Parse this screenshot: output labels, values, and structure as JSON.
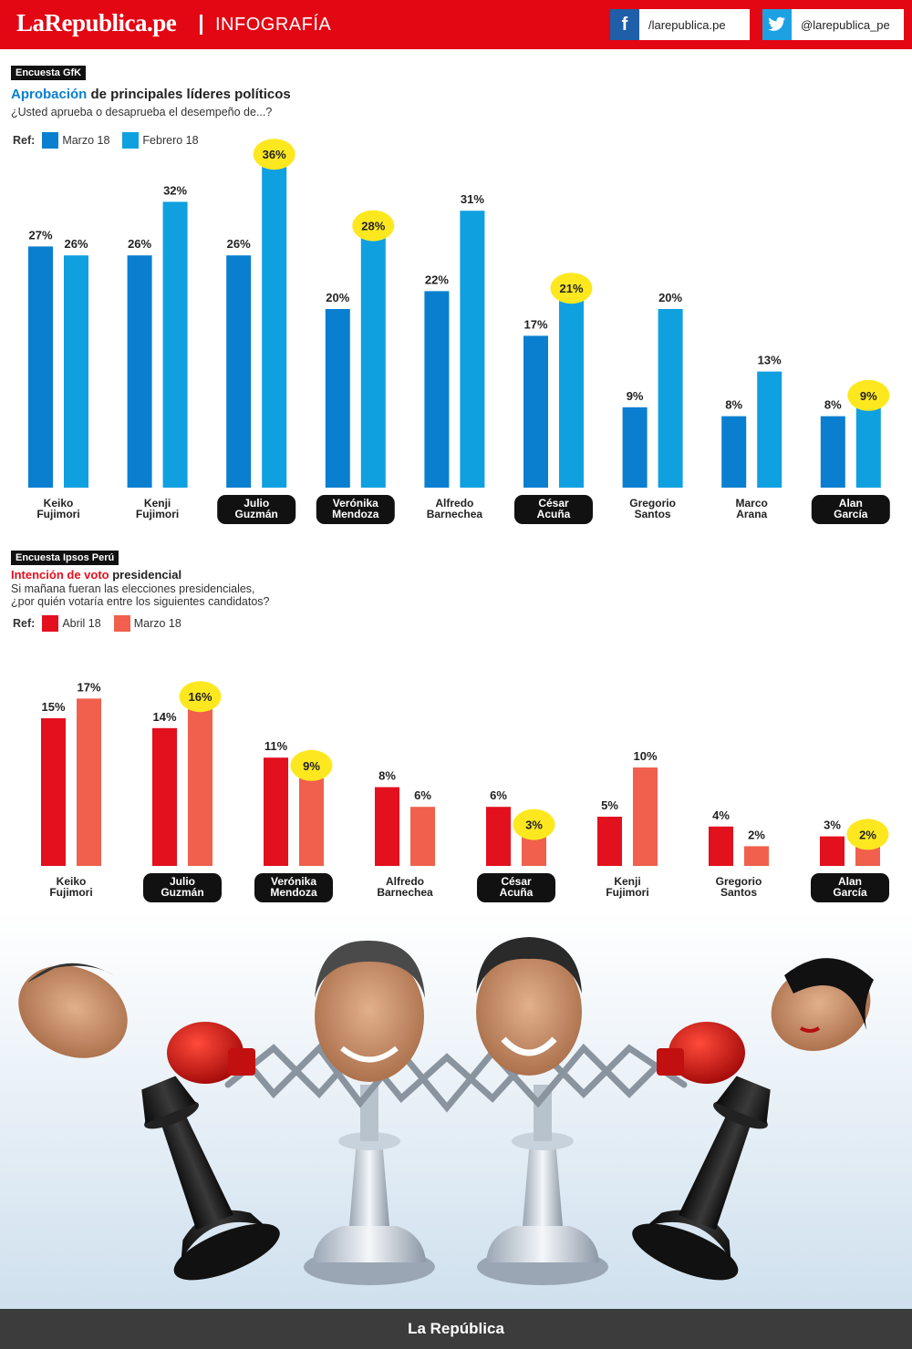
{
  "header": {
    "brand": "LaRepublica.pe",
    "section": "INFOGRAFÍA",
    "facebook": "/larepublica.pe",
    "twitter": "@larepublica_pe",
    "facebook_icon": "facebook-icon",
    "twitter_icon": "twitter-icon"
  },
  "colors": {
    "header_red": "#e30613",
    "blue_dark": "#0a7fd0",
    "blue_light": "#0fa0e0",
    "red_dark": "#e3101e",
    "red_light": "#f0604c",
    "highlight": "#fde820",
    "pill_dark": "#111111"
  },
  "survey1": {
    "tag": "Encuesta GfK",
    "title_highlight": "Aprobación",
    "title_rest": " de principales líderes políticos",
    "question": "¿Usted aprueba o desaprueba el desempeño de...?",
    "ref_label": "Ref:",
    "legend": [
      "Marzo 18",
      "Febrero 18"
    ]
  },
  "survey2": {
    "tag": "Encuesta Ipsos Perú",
    "title_highlight": "Intención de voto",
    "title_rest": " presidencial",
    "question_line1": "Si mañana fueran las elecciones presidenciales,",
    "question_line2": "¿por quién votaría entre los siguientes candidatos?",
    "ref_label": "Ref:",
    "legend": [
      "Abril 18",
      "Marzo 18"
    ]
  },
  "chart_data": [
    {
      "type": "bar",
      "title": "Aprobación de principales líderes políticos",
      "categories": [
        [
          "Keiko",
          "Fujimori"
        ],
        [
          "Kenji",
          "Fujimori"
        ],
        [
          "Julio",
          "Guzmán"
        ],
        [
          "Verónika",
          "Mendoza"
        ],
        [
          "Alfredo",
          "Barnechea"
        ],
        [
          "César",
          "Acuña"
        ],
        [
          "Gregorio",
          "Santos"
        ],
        [
          "Marco",
          "Arana"
        ],
        [
          "Alan",
          "García"
        ]
      ],
      "highlighted": [
        false,
        false,
        true,
        true,
        false,
        true,
        false,
        false,
        true
      ],
      "series": [
        {
          "name": "Marzo 18",
          "values": [
            27,
            26,
            26,
            20,
            22,
            17,
            9,
            8,
            8
          ]
        },
        {
          "name": "Febrero 18",
          "values": [
            26,
            32,
            36,
            28,
            31,
            21,
            20,
            13,
            9
          ]
        }
      ],
      "unit": "%",
      "ylim": [
        0,
        36
      ]
    },
    {
      "type": "bar",
      "title": "Intención de voto presidencial",
      "categories": [
        [
          "Keiko",
          "Fujimori"
        ],
        [
          "Julio",
          "Guzmán"
        ],
        [
          "Verónika",
          "Mendoza"
        ],
        [
          "Alfredo",
          "Barnechea"
        ],
        [
          "César",
          "Acuña"
        ],
        [
          "Kenji",
          "Fujimori"
        ],
        [
          "Gregorio",
          "Santos"
        ],
        [
          "Alan",
          "García"
        ]
      ],
      "highlighted": [
        false,
        true,
        true,
        false,
        true,
        false,
        false,
        true
      ],
      "series": [
        {
          "name": "Abril 18",
          "values": [
            15,
            14,
            11,
            8,
            6,
            5,
            4,
            3
          ]
        },
        {
          "name": "Marzo 18",
          "values": [
            17,
            16,
            9,
            6,
            3,
            10,
            2,
            2
          ]
        }
      ],
      "unit": "%",
      "ylim": [
        0,
        17
      ]
    }
  ],
  "footer": "La República"
}
